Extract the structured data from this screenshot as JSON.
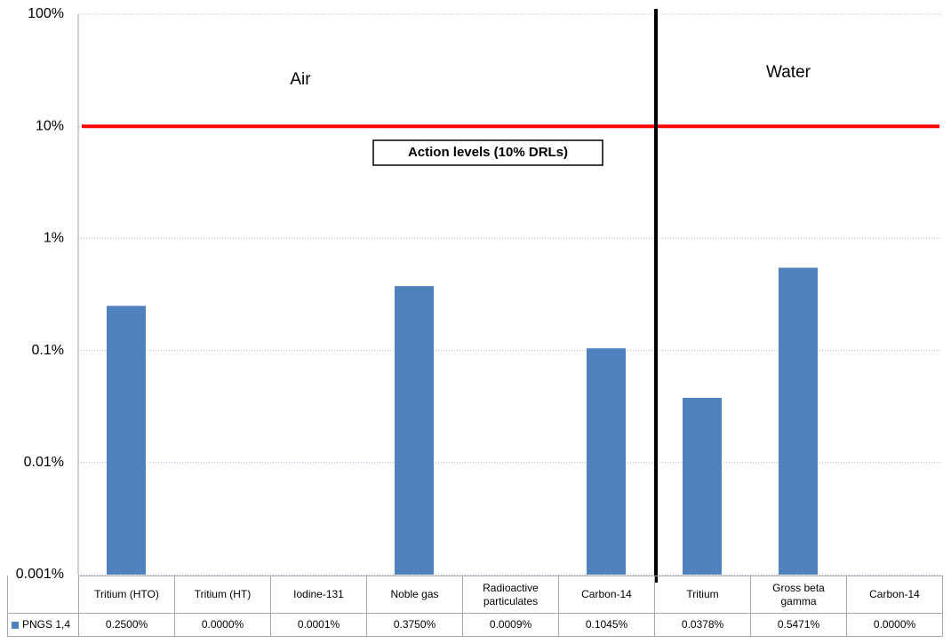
{
  "chart_data": {
    "type": "bar",
    "categories": [
      "Tritium (HTO)",
      "Tritium (HT)",
      "Iodine-131",
      "Noble gas",
      "Radioactive particulates",
      "Carbon-14",
      "Tritium",
      "Gross beta gamma",
      "Carbon-14"
    ],
    "series": [
      {
        "name": "PNGS 1,4",
        "color": "#4f81bd",
        "values": [
          0.25,
          0,
          0.0001,
          0.375,
          0.0009,
          0.1045,
          0.0378,
          0.5471,
          0
        ],
        "value_labels": [
          "0.2500%",
          "0.0000%",
          "0.0001%",
          "0.3750%",
          "0.0009%",
          "0.1045%",
          "0.0378%",
          "0.5471%",
          "0.0000%"
        ]
      }
    ],
    "ylim": [
      0.001,
      100
    ],
    "yticks": [
      {
        "value": 0.001,
        "label": "0.001%"
      },
      {
        "value": 0.01,
        "label": "0.01%"
      },
      {
        "value": 0.1,
        "label": "0.1%"
      },
      {
        "value": 1,
        "label": "1%"
      },
      {
        "value": 10,
        "label": "10%"
      },
      {
        "value": 100,
        "label": "100%"
      }
    ],
    "log_scale": true,
    "grid": true,
    "reference_line": {
      "value": 10,
      "color": "#ff0000",
      "label": "Action levels (10% DRLs)"
    },
    "groups": [
      {
        "label": "Air",
        "count": 6
      },
      {
        "label": "Water",
        "count": 3
      }
    ]
  }
}
